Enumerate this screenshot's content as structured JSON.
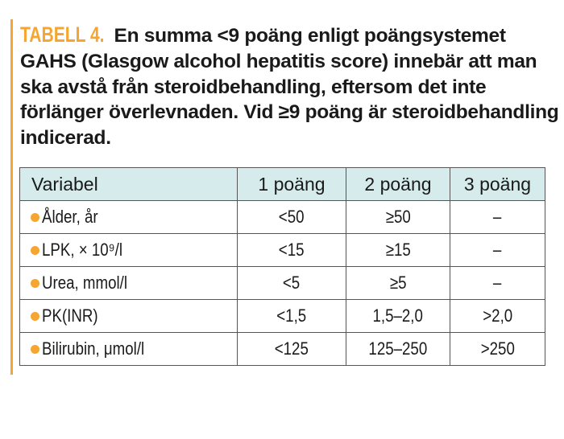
{
  "caption": {
    "label": "TABELL 4.",
    "text": "En summa <9 poäng enligt poängsystemet GAHS (Glasgow alcohol hepatitis score) innebär  att man ska avstå från steroidbehandling, eftersom det inte förlänger överlevnaden. Vid ≥9 poäng är steroid­behandling indicerad."
  },
  "colors": {
    "accent": "#f5a530",
    "header_bg": "#d6ebeb"
  },
  "table": {
    "headers": [
      "Variabel",
      "1 poäng",
      "2 poäng",
      "3 poäng"
    ],
    "rows": [
      [
        "Ålder, år",
        "<50",
        "≥50",
        "–"
      ],
      [
        "LPK, × 10⁹/l",
        "<15",
        "≥15",
        "–"
      ],
      [
        "Urea, mmol/l",
        "<5",
        "≥5",
        "–"
      ],
      [
        "PK(INR)",
        "<1,5",
        "1,5–2,0",
        ">2,0"
      ],
      [
        "Bilirubin, μmol/l",
        "<125",
        "125–250",
        ">250"
      ]
    ]
  }
}
